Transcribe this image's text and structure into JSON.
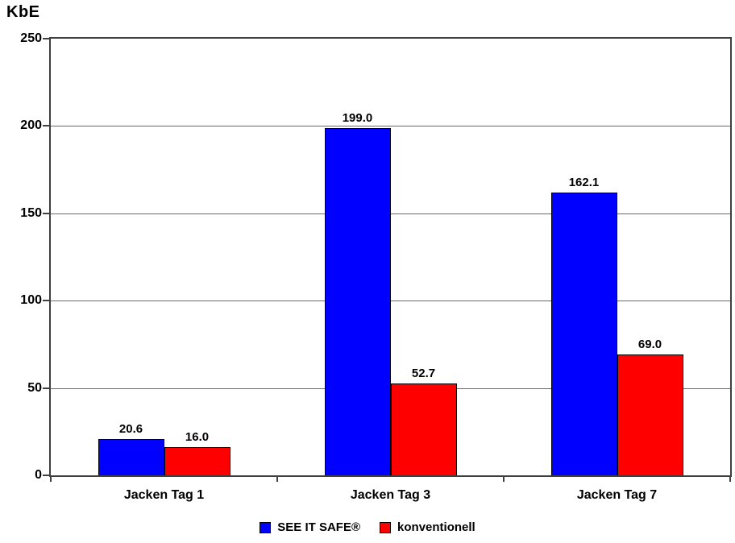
{
  "chart_data": {
    "type": "bar",
    "title": "",
    "ylabel": "KbE",
    "xlabel": "",
    "categories": [
      "Jacken Tag 1",
      "Jacken Tag 3",
      "Jacken Tag 7"
    ],
    "series": [
      {
        "name": "SEE IT SAFE®",
        "color": "#0000ff",
        "values": [
          20.6,
          199.0,
          162.1
        ],
        "labels": [
          "20.6",
          "199.0",
          "162.1"
        ]
      },
      {
        "name": "konventionell",
        "color": "#ff0000",
        "values": [
          16.0,
          52.7,
          69.0
        ],
        "labels": [
          "16.0",
          "52.7",
          "69.0"
        ]
      }
    ],
    "ylim": [
      0,
      250
    ],
    "yticks": [
      0,
      50,
      100,
      150,
      200,
      250
    ],
    "grid": "horizontal",
    "legend_position": "bottom",
    "background": "#ffffff",
    "axis_color": "#3f3f3f",
    "gridline_color": "#686868",
    "text_color": "#000000"
  }
}
